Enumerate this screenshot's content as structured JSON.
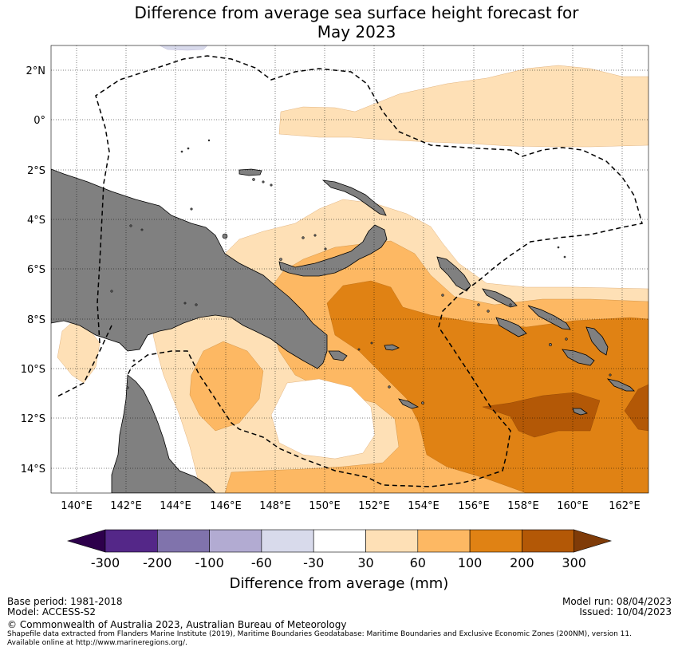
{
  "header": {
    "title_line1": "Difference from average sea surface height forecast for",
    "title_line2": "May 2023"
  },
  "map": {
    "region": "Western Pacific: Papua New Guinea and Solomon Islands",
    "lat_labels": [
      "2°N",
      "0°",
      "2°S",
      "4°S",
      "6°S",
      "8°S",
      "10°S",
      "12°S",
      "14°S"
    ],
    "lon_labels": [
      "140°E",
      "142°E",
      "144°E",
      "146°E",
      "148°E",
      "150°E",
      "152°E",
      "154°E",
      "156°E",
      "158°E",
      "160°E",
      "162°E"
    ],
    "land_color": "#808080",
    "boundary_style": "dashed"
  },
  "colorbar": {
    "ticks": [
      "-300",
      "-200",
      "-100",
      "-60",
      "-30",
      "30",
      "60",
      "100",
      "200",
      "300"
    ],
    "colors": [
      "#2d004b",
      "#542788",
      "#8073ac",
      "#b2abd2",
      "#d8daeb",
      "#ffffff",
      "#fee0b6",
      "#fdb863",
      "#e08214",
      "#b35806",
      "#7f3b08"
    ],
    "label": "Difference from average (mm)"
  },
  "footer": {
    "base_period": "Base period: 1981-2018",
    "model": "Model: ACCESS-S2",
    "model_run": "Model run: 08/04/2023",
    "issued": "Issued: 10/04/2023",
    "copyright": "© Commonwealth of Australia 2023, Australian Bureau of Meteorology",
    "source_line1": "Shapefile data extracted from Flanders Marine Institute (2019), Maritime Boundaries Geodatabase: Maritime Boundaries and Exclusive Economic Zones (200NM), version 11.",
    "source_line2": "Available online at http://www.marineregions.org/."
  }
}
